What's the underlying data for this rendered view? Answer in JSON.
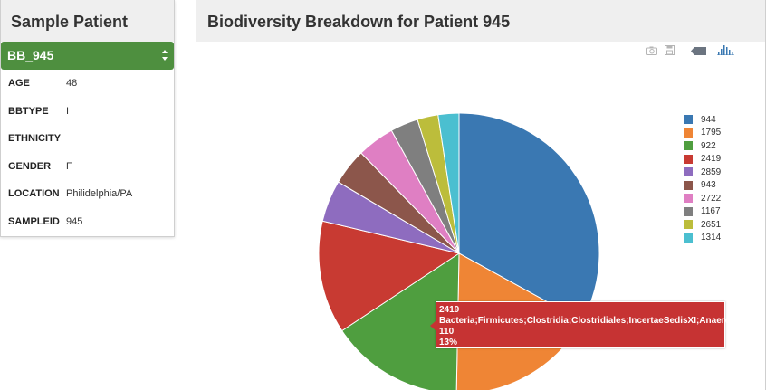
{
  "left_panel": {
    "title": "Sample Patient",
    "select": {
      "value": "BB_945"
    },
    "fields": [
      {
        "key": "AGE",
        "value": "48"
      },
      {
        "key": "BBTYPE",
        "value": "I"
      },
      {
        "key": "ETHNICITY",
        "value": ""
      },
      {
        "key": "GENDER",
        "value": "F"
      },
      {
        "key": "LOCATION",
        "value": "Philidelphia/PA"
      },
      {
        "key": "SAMPLEID",
        "value": "945"
      }
    ]
  },
  "right_panel": {
    "title": "Biodiversity Breakdown for Patient 945",
    "toolbar": [
      "camera-icon",
      "save-icon",
      "tag-icon",
      "bar-chart-icon"
    ]
  },
  "tooltip": {
    "line1": "2419",
    "line2": "Bacteria;Firmicutes;Clostridia;Clostridiales;IncertaeSedisXI;Anaerococcus",
    "line3": "110",
    "line4": "13%"
  },
  "chart_data": {
    "type": "pie",
    "title": "",
    "series": [
      {
        "label": "944",
        "value": 33.0,
        "color": "#3a78b2"
      },
      {
        "label": "1795",
        "value": 17.3,
        "color": "#ef8535"
      },
      {
        "label": "922",
        "value": 15.4,
        "color": "#4f9e3f"
      },
      {
        "label": "2419",
        "value": 13.0,
        "color": "#c83a32"
      },
      {
        "label": "2859",
        "value": 4.8,
        "color": "#8e6cbf"
      },
      {
        "label": "943",
        "value": 4.2,
        "color": "#8c564b"
      },
      {
        "label": "2722",
        "value": 4.3,
        "color": "#df7fc3"
      },
      {
        "label": "1167",
        "value": 3.2,
        "color": "#7f7f7f"
      },
      {
        "label": "2651",
        "value": 2.4,
        "color": "#bcbd3b"
      },
      {
        "label": "1314",
        "value": 2.4,
        "color": "#4bbfd0"
      }
    ],
    "legend": "right"
  }
}
